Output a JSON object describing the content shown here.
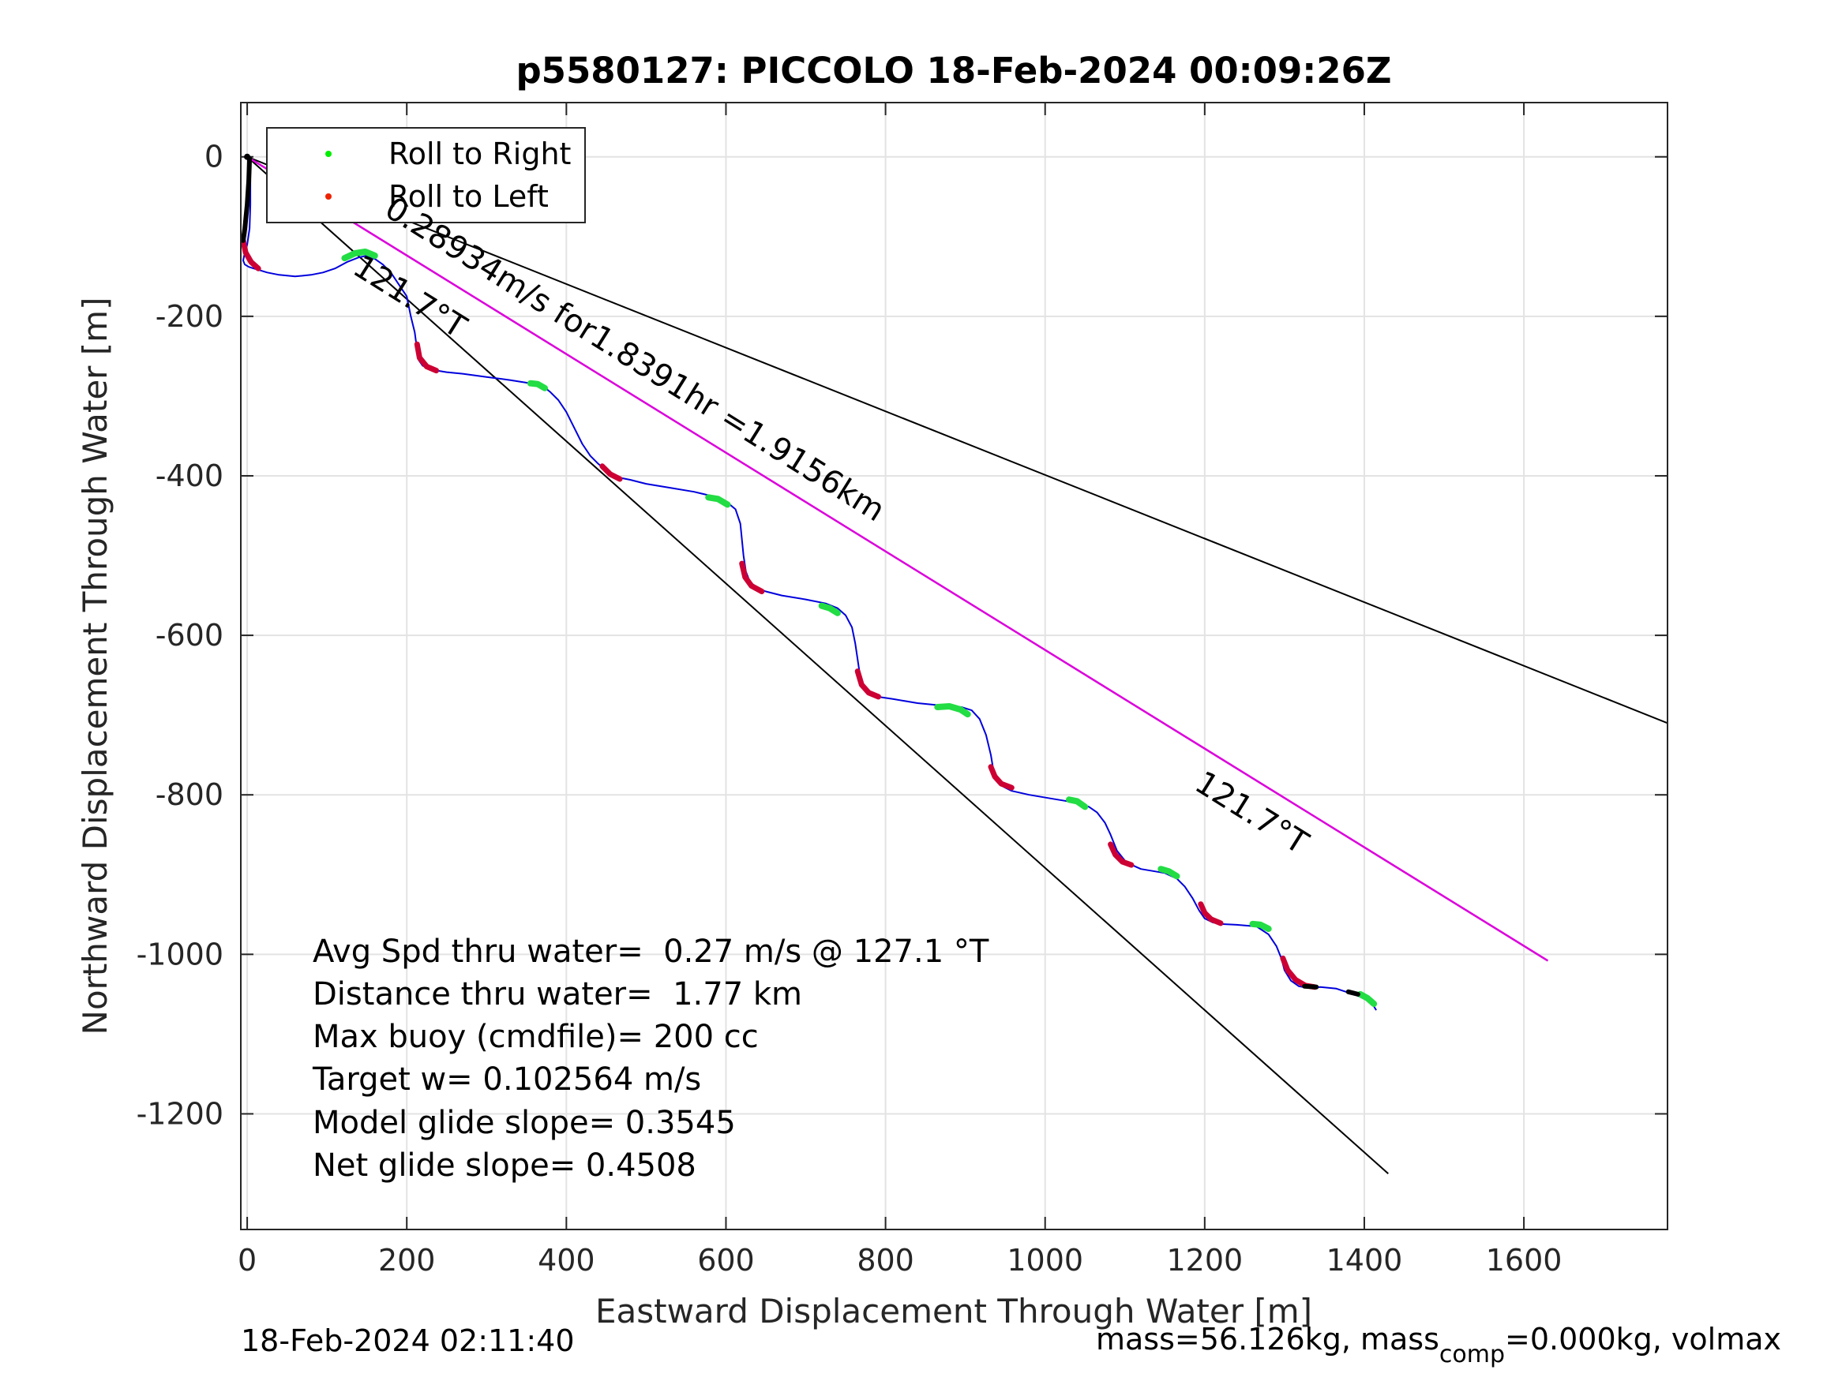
{
  "chart_data": {
    "type": "line",
    "title": "p5580127: PICCOLO 18-Feb-2024 00:09:26Z",
    "xlabel": "Eastward Displacement Through Water [m]",
    "ylabel": "Northward Displacement Through Water [m]",
    "xlim": [
      -8,
      1780
    ],
    "ylim": [
      -1345,
      68
    ],
    "xticks": [
      0,
      200,
      400,
      600,
      800,
      1000,
      1200,
      1400,
      1600
    ],
    "yticks": [
      0,
      -200,
      -400,
      -600,
      -800,
      -1000,
      -1200
    ],
    "grid": true,
    "legend": {
      "placement": "top-left",
      "entries": [
        {
          "label": "Roll to Right",
          "color": "#00ee00"
        },
        {
          "label": "Roll to Left",
          "color": "#ee2200"
        }
      ]
    },
    "colors": {
      "track": "#0000dd",
      "roll_right": "#22dd44",
      "roll_left": "#cc0033",
      "heading": "#dd00dd",
      "ref": "#000000"
    },
    "reference_lines": [
      {
        "name": "",
        "x": [
          0,
          1780
        ],
        "y": [
          0,
          -710
        ]
      },
      {
        "name": "",
        "x": [
          0,
          1630
        ],
        "y": [
          0,
          -1008
        ]
      },
      {
        "name": "",
        "x": [
          0,
          1430
        ],
        "y": [
          0,
          -1275
        ]
      }
    ],
    "heading_line": {
      "x": [
        0,
        1630
      ],
      "y": [
        0,
        -1008
      ]
    },
    "track": {
      "x": [
        0,
        2,
        4,
        4,
        3,
        0,
        -3,
        -5,
        -3,
        2,
        8,
        15,
        25,
        40,
        60,
        80,
        95,
        110,
        125,
        140,
        150,
        160,
        170,
        180,
        190,
        200,
        205,
        210,
        212,
        213,
        215,
        220,
        228,
        238,
        250,
        270,
        300,
        330,
        355,
        370,
        380,
        390,
        400,
        410,
        420,
        430,
        440,
        450,
        460,
        470,
        480,
        500,
        530,
        560,
        585,
        600,
        612,
        618,
        620,
        622,
        625,
        630,
        640,
        650,
        670,
        700,
        725,
        740,
        750,
        758,
        762,
        765,
        768,
        772,
        780,
        790,
        810,
        840,
        870,
        895,
        908,
        918,
        926,
        932,
        935,
        940,
        948,
        958,
        980,
        1010,
        1040,
        1055,
        1065,
        1075,
        1082,
        1090,
        1102,
        1120,
        1150,
        1165,
        1175,
        1185,
        1193,
        1200,
        1210,
        1220,
        1240,
        1265,
        1280,
        1290,
        1296,
        1300,
        1308,
        1318,
        1330,
        1345,
        1365,
        1380,
        1392,
        1402,
        1410,
        1415
      ],
      "y": [
        0,
        -10,
        -30,
        -60,
        -90,
        -110,
        -120,
        -130,
        -135,
        -138,
        -140,
        -142,
        -145,
        -148,
        -150,
        -148,
        -145,
        -140,
        -132,
        -126,
        -124,
        -128,
        -135,
        -145,
        -160,
        -175,
        -200,
        -220,
        -235,
        -245,
        -255,
        -262,
        -266,
        -268,
        -270,
        -272,
        -276,
        -280,
        -284,
        -287,
        -295,
        -305,
        -320,
        -340,
        -360,
        -375,
        -385,
        -393,
        -400,
        -403,
        -405,
        -410,
        -415,
        -420,
        -426,
        -432,
        -442,
        -460,
        -480,
        -500,
        -520,
        -533,
        -541,
        -545,
        -550,
        -555,
        -560,
        -566,
        -575,
        -590,
        -610,
        -630,
        -650,
        -665,
        -673,
        -677,
        -680,
        -685,
        -688,
        -690,
        -694,
        -705,
        -725,
        -750,
        -768,
        -782,
        -790,
        -795,
        -800,
        -805,
        -810,
        -815,
        -822,
        -835,
        -850,
        -870,
        -885,
        -893,
        -898,
        -905,
        -915,
        -930,
        -945,
        -955,
        -960,
        -962,
        -963,
        -965,
        -975,
        -990,
        -1005,
        -1020,
        -1033,
        -1040,
        -1042,
        -1041,
        -1043,
        -1048,
        -1052,
        -1057,
        -1062,
        -1070
      ]
    },
    "roll_segments": [
      {
        "dir": "left",
        "x": [
          -5,
          -2,
          5,
          14
        ],
        "y": [
          -105,
          -120,
          -132,
          -140
        ]
      },
      {
        "dir": "right",
        "x": [
          122,
          135,
          148,
          160
        ],
        "y": [
          -127,
          -121,
          -119,
          -124
        ]
      },
      {
        "dir": "left",
        "x": [
          213,
          216,
          225,
          237
        ],
        "y": [
          -235,
          -252,
          -263,
          -268
        ]
      },
      {
        "dir": "right",
        "x": [
          355,
          364,
          373
        ],
        "y": [
          -284,
          -285,
          -290
        ]
      },
      {
        "dir": "left",
        "x": [
          445,
          455,
          467
        ],
        "y": [
          -388,
          -398,
          -404
        ]
      },
      {
        "dir": "right",
        "x": [
          578,
          590,
          602
        ],
        "y": [
          -427,
          -429,
          -436
        ]
      },
      {
        "dir": "left",
        "x": [
          620,
          624,
          632,
          645
        ],
        "y": [
          -510,
          -527,
          -538,
          -545
        ]
      },
      {
        "dir": "right",
        "x": [
          720,
          730,
          740
        ],
        "y": [
          -563,
          -566,
          -572
        ]
      },
      {
        "dir": "left",
        "x": [
          765,
          770,
          779,
          791
        ],
        "y": [
          -645,
          -662,
          -672,
          -677
        ]
      },
      {
        "dir": "right",
        "x": [
          865,
          880,
          894,
          903
        ],
        "y": [
          -690,
          -689,
          -693,
          -699
        ]
      },
      {
        "dir": "left",
        "x": [
          932,
          937,
          945,
          958
        ],
        "y": [
          -765,
          -777,
          -786,
          -791
        ]
      },
      {
        "dir": "right",
        "x": [
          1030,
          1040,
          1050
        ],
        "y": [
          -806,
          -808,
          -815
        ]
      },
      {
        "dir": "left",
        "x": [
          1082,
          1088,
          1097,
          1108
        ],
        "y": [
          -862,
          -875,
          -884,
          -888
        ]
      },
      {
        "dir": "right",
        "x": [
          1145,
          1155,
          1165
        ],
        "y": [
          -893,
          -896,
          -902
        ]
      },
      {
        "dir": "left",
        "x": [
          1195,
          1200,
          1208,
          1220
        ],
        "y": [
          -937,
          -948,
          -956,
          -961
        ]
      },
      {
        "dir": "right",
        "x": [
          1260,
          1270,
          1280
        ],
        "y": [
          -962,
          -963,
          -968
        ]
      },
      {
        "dir": "left",
        "x": [
          1298,
          1304,
          1314,
          1326,
          1338
        ],
        "y": [
          -1005,
          -1020,
          -1032,
          -1039,
          -1041
        ]
      },
      {
        "dir": "right",
        "x": [
          1395,
          1404,
          1412
        ],
        "y": [
          -1050,
          -1055,
          -1062
        ]
      }
    ],
    "black_segments": [
      {
        "x": [
          3,
          2,
          0,
          -3,
          -5
        ],
        "y": [
          -2,
          -30,
          -60,
          -90,
          -105
        ]
      },
      {
        "x": [
          1325,
          1340
        ],
        "y": [
          -1040,
          -1041
        ]
      },
      {
        "x": [
          1380,
          1392
        ],
        "y": [
          -1047,
          -1050
        ]
      }
    ],
    "annotations": [
      {
        "text": "0.28934m/s for1.8391hr =1.9156km",
        "x": 170,
        "y": -72,
        "angle": 32
      },
      {
        "text": "121.7°T",
        "x": 130,
        "y": -145,
        "angle": 32
      },
      {
        "text": "121.7°T",
        "x": 1185,
        "y": -792,
        "angle": 32
      }
    ],
    "stats": [
      "Avg Spd thru water=  0.27 m/s @ 127.1 °T",
      "Distance thru water=  1.77 km",
      "Max buoy (cmdfile)= 200 cc",
      "Target w= 0.102564 m/s",
      "Model glide slope= 0.3545",
      "Net glide slope= 0.4508"
    ]
  },
  "footer": {
    "timestamp": "18-Feb-2024 02:11:40",
    "mass_text": "mass=56.126kg, mass",
    "mass_sub": "comp",
    "mass_rest": "=0.000kg, volmax"
  }
}
